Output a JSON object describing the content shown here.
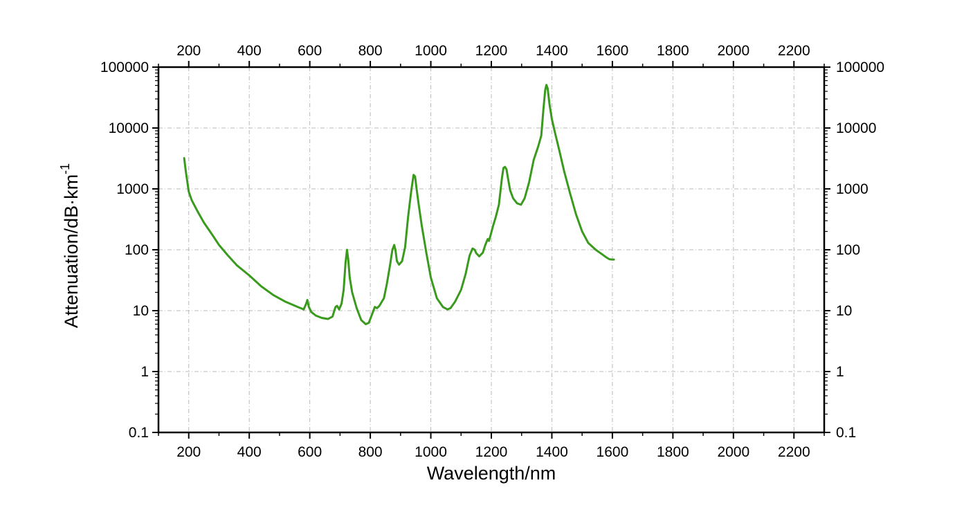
{
  "chart_data": {
    "type": "line",
    "xlabel": "Wavelength/nm",
    "ylabel": "Attenuation/dB·km",
    "ylabel_superscript": "-1",
    "xlim": [
      100,
      2300
    ],
    "ylim": [
      0.1,
      100000
    ],
    "y_scale": "log",
    "x_ticks": [
      "200",
      "400",
      "600",
      "800",
      "1000",
      "1200",
      "1400",
      "1600",
      "1800",
      "2000",
      "2200"
    ],
    "y_ticks": [
      "0.1",
      "1",
      "10",
      "100",
      "1000",
      "10000",
      "100000"
    ],
    "grid": true,
    "series": [
      {
        "color": "#3a9a1e",
        "x": [
          185,
          190,
          200,
          210,
          230,
          250,
          280,
          300,
          330,
          360,
          400,
          440,
          480,
          520,
          560,
          580,
          588,
          592,
          597,
          605,
          620,
          640,
          660,
          675,
          685,
          690,
          697,
          705,
          712,
          718,
          723,
          727,
          732,
          740,
          755,
          770,
          785,
          795,
          805,
          815,
          822,
          830,
          845,
          855,
          865,
          873,
          879,
          883,
          888,
          895,
          905,
          915,
          925,
          935,
          943,
          948,
          953,
          960,
          970,
          985,
          1000,
          1020,
          1040,
          1055,
          1065,
          1080,
          1100,
          1115,
          1128,
          1138,
          1145,
          1150,
          1160,
          1172,
          1180,
          1188,
          1192,
          1197,
          1205,
          1215,
          1225,
          1235,
          1240,
          1245,
          1250,
          1255,
          1262,
          1272,
          1285,
          1298,
          1310,
          1325,
          1340,
          1355,
          1365,
          1372,
          1378,
          1382,
          1386,
          1392,
          1400,
          1410,
          1425,
          1440,
          1460,
          1480,
          1500,
          1520,
          1545,
          1565,
          1580,
          1590,
          1600,
          1605
        ],
        "y": [
          3200,
          2000,
          900,
          650,
          420,
          280,
          170,
          120,
          80,
          55,
          38,
          25,
          18,
          14,
          11.5,
          10.5,
          13,
          15,
          11.5,
          9.5,
          8.3,
          7.6,
          7.3,
          8,
          11.5,
          12,
          10.5,
          13,
          22,
          60,
          100,
          70,
          35,
          20,
          11,
          7,
          6,
          6.3,
          8.5,
          11.5,
          11,
          12,
          16,
          28,
          55,
          100,
          120,
          100,
          65,
          57,
          65,
          110,
          350,
          900,
          1700,
          1600,
          1000,
          550,
          250,
          90,
          35,
          16,
          11.5,
          10.5,
          11,
          14,
          22,
          40,
          80,
          105,
          100,
          88,
          78,
          90,
          120,
          150,
          140,
          170,
          240,
          350,
          550,
          1500,
          2200,
          2300,
          2100,
          1500,
          950,
          700,
          580,
          550,
          700,
          1300,
          3000,
          5000,
          7500,
          20000,
          42000,
          51000,
          45000,
          25000,
          14000,
          8500,
          4200,
          2000,
          850,
          380,
          200,
          130,
          100,
          85,
          75,
          70,
          69,
          69
        ]
      }
    ]
  }
}
